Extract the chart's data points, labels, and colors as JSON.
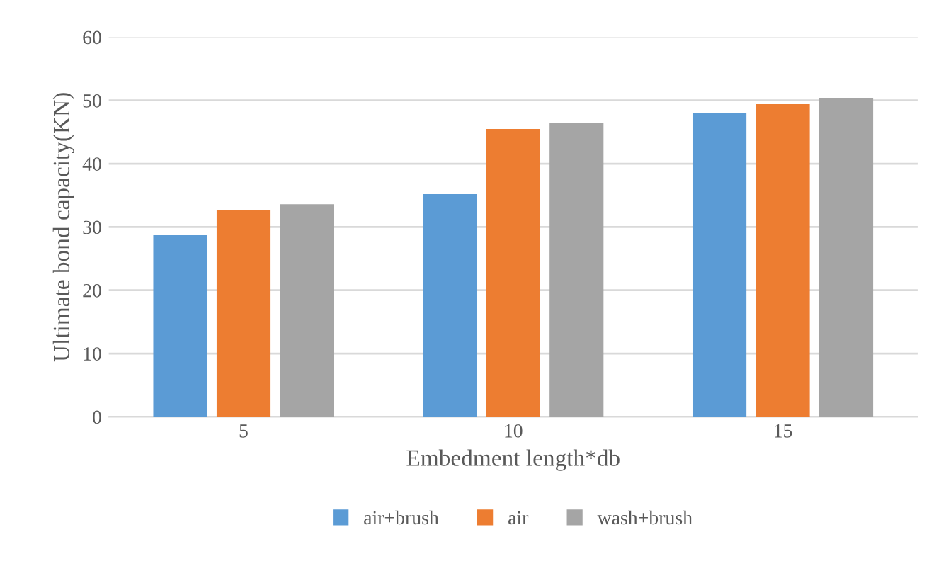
{
  "chart_data": {
    "type": "bar",
    "xlabel": "Embedment length*db",
    "ylabel": "Ultimate bond capacity(KN)",
    "categories": [
      "5",
      "10",
      "15"
    ],
    "series": [
      {
        "name": "air+brush",
        "color": "#5b9bd5",
        "values": [
          28.7,
          35.2,
          48.0
        ]
      },
      {
        "name": "air",
        "color": "#ed7d31",
        "values": [
          32.7,
          45.5,
          49.4
        ]
      },
      {
        "name": "wash+brush",
        "color": "#a5a5a5",
        "values": [
          33.6,
          46.4,
          50.3
        ]
      }
    ],
    "ylim": [
      0,
      60
    ],
    "yticks": [
      0,
      10,
      20,
      30,
      40,
      50,
      60
    ],
    "grid": "y",
    "legend": "bottom"
  }
}
